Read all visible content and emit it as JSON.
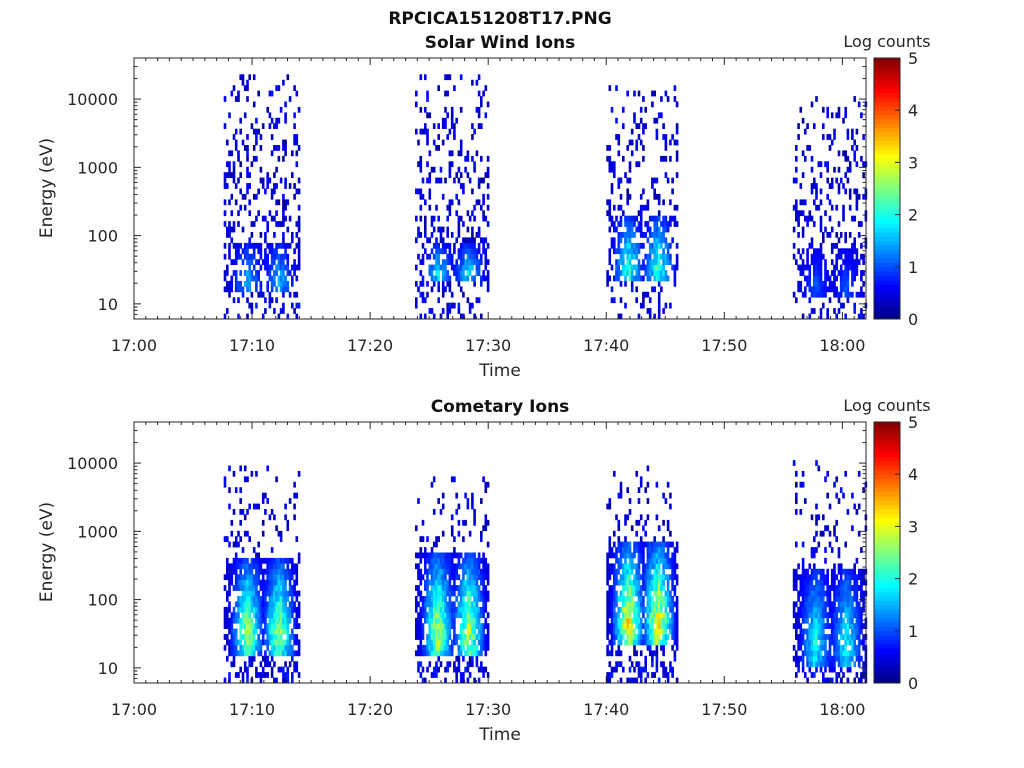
{
  "figure_title": "RPCICA151208T17.PNG",
  "chart_data": [
    {
      "type": "heatmap",
      "title": "Solar Wind Ions",
      "xlabel": "Time",
      "ylabel": "Energy (eV)",
      "x_range": [
        "17:00",
        "18:02"
      ],
      "x_ticks": [
        "17:00",
        "17:10",
        "17:20",
        "17:30",
        "17:40",
        "17:50",
        "18:00"
      ],
      "y_scale": "log",
      "y_range": [
        6,
        40000
      ],
      "y_ticks": [
        "10",
        "100",
        "1000",
        "10000"
      ],
      "colorbar": {
        "label": "Log counts",
        "colormap": "jet",
        "range": [
          0,
          5
        ],
        "ticks": [
          "0",
          "1",
          "2",
          "3",
          "4",
          "5"
        ]
      },
      "bursts": [
        {
          "start": "17:07.6",
          "end": "17:14.0",
          "max_energy_ev": 25000,
          "core_energy_ev": [
            15,
            80
          ],
          "peak_log_counts": 1.8
        },
        {
          "start": "17:23.8",
          "end": "17:30.0",
          "max_energy_ev": 25000,
          "core_energy_ev": [
            20,
            80
          ],
          "peak_log_counts": 2.1
        },
        {
          "start": "17:40.0",
          "end": "17:46.0",
          "max_energy_ev": 15000,
          "core_energy_ev": [
            20,
            200
          ],
          "peak_log_counts": 2.6
        },
        {
          "start": "17:55.8",
          "end": "18:02.0",
          "max_energy_ev": 11000,
          "core_energy_ev": [
            12,
            60
          ],
          "peak_log_counts": 1.2
        }
      ]
    },
    {
      "type": "heatmap",
      "title": "Cometary Ions",
      "xlabel": "Time",
      "ylabel": "Energy (eV)",
      "x_range": [
        "17:00",
        "18:02"
      ],
      "x_ticks": [
        "17:00",
        "17:10",
        "17:20",
        "17:30",
        "17:40",
        "17:50",
        "18:00"
      ],
      "y_scale": "log",
      "y_range": [
        6,
        40000
      ],
      "y_ticks": [
        "10",
        "100",
        "1000",
        "10000"
      ],
      "colorbar": {
        "label": "Log counts",
        "colormap": "jet",
        "range": [
          0,
          5
        ],
        "ticks": [
          "0",
          "1",
          "2",
          "3",
          "4",
          "5"
        ]
      },
      "bursts": [
        {
          "start": "17:07.6",
          "end": "17:14.0",
          "max_energy_ev": 10000,
          "core_energy_ev": [
            15,
            400
          ],
          "peak_log_counts": 3.3
        },
        {
          "start": "17:23.8",
          "end": "17:30.0",
          "max_energy_ev": 6000,
          "core_energy_ev": [
            15,
            500
          ],
          "peak_log_counts": 3.5
        },
        {
          "start": "17:40.0",
          "end": "17:46.0",
          "max_energy_ev": 9000,
          "core_energy_ev": [
            20,
            700
          ],
          "peak_log_counts": 4.0
        },
        {
          "start": "17:55.8",
          "end": "18:02.0",
          "max_energy_ev": 12000,
          "core_energy_ev": [
            10,
            300
          ],
          "peak_log_counts": 2.4
        }
      ]
    }
  ]
}
